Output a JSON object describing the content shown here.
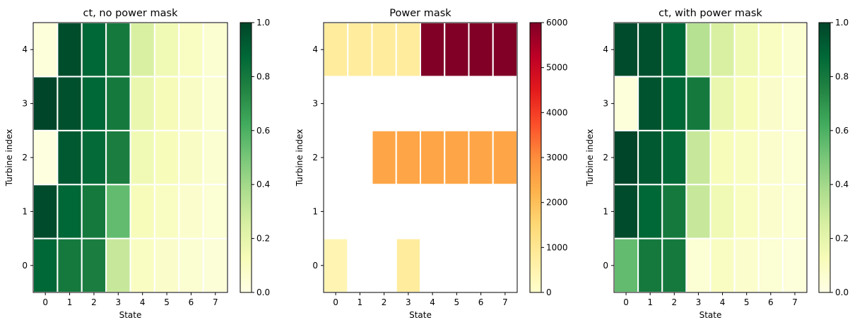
{
  "chart_data": [
    {
      "type": "heatmap",
      "title": "ct, no power mask",
      "xlabel": "State",
      "ylabel": "Turbine index",
      "x": [
        0,
        1,
        2,
        3,
        4,
        5,
        6,
        7
      ],
      "y": [
        0,
        1,
        2,
        3,
        4
      ],
      "colormap": "YlGn",
      "vmin": 0,
      "vmax": 1,
      "colorbar_ticks": [
        "0.0",
        "0.2",
        "0.4",
        "0.6",
        "0.8",
        "1.0"
      ],
      "values": [
        [
          0.88,
          0.8,
          0.78,
          0.3,
          0.1,
          0.08,
          0.06,
          0.04
        ],
        [
          0.98,
          0.88,
          0.8,
          0.55,
          0.12,
          0.1,
          0.07,
          0.05
        ],
        [
          0.02,
          0.93,
          0.86,
          0.78,
          0.15,
          0.12,
          0.09,
          0.06
        ],
        [
          1.0,
          0.96,
          0.88,
          0.8,
          0.18,
          0.13,
          0.09,
          0.06
        ],
        [
          0.03,
          0.97,
          0.88,
          0.8,
          0.25,
          0.15,
          0.1,
          0.06
        ]
      ]
    },
    {
      "type": "heatmap",
      "title": "Power mask",
      "xlabel": "State",
      "ylabel": "Turbine index",
      "x": [
        0,
        1,
        2,
        3,
        4,
        5,
        6,
        7
      ],
      "y": [
        0,
        1,
        2,
        3,
        4
      ],
      "colormap": "YlOrRd",
      "vmin": 0,
      "vmax": 6000,
      "colorbar_ticks": [
        "0",
        "1000",
        "2000",
        "3000",
        "4000",
        "5000",
        "6000"
      ],
      "values": [
        [
          450,
          null,
          null,
          800,
          null,
          null,
          null,
          null
        ],
        [
          null,
          null,
          null,
          null,
          null,
          null,
          null,
          null
        ],
        [
          null,
          null,
          2500,
          2500,
          2500,
          2500,
          2500,
          2500
        ],
        [
          null,
          null,
          null,
          null,
          null,
          null,
          null,
          null
        ],
        [
          800,
          800,
          800,
          800,
          6000,
          6000,
          6000,
          6000
        ]
      ]
    },
    {
      "type": "heatmap",
      "title": "ct, with power mask",
      "xlabel": "State",
      "ylabel": "Turbine index",
      "x": [
        0,
        1,
        2,
        3,
        4,
        5,
        6,
        7
      ],
      "y": [
        0,
        1,
        2,
        3,
        4
      ],
      "colormap": "YlGn",
      "vmin": 0,
      "vmax": 1,
      "colorbar_ticks": [
        "0.0",
        "0.2",
        "0.4",
        "0.6",
        "0.8",
        "1.0"
      ],
      "values": [
        [
          0.55,
          0.8,
          0.8,
          0.05,
          0.1,
          0.07,
          0.05,
          0.03
        ],
        [
          0.98,
          0.88,
          0.8,
          0.3,
          0.15,
          0.1,
          0.07,
          0.05
        ],
        [
          1.0,
          0.93,
          0.86,
          0.3,
          0.12,
          0.1,
          0.07,
          0.05
        ],
        [
          0.03,
          0.95,
          0.88,
          0.8,
          0.18,
          0.12,
          0.08,
          0.05
        ],
        [
          0.98,
          0.96,
          0.88,
          0.35,
          0.25,
          0.15,
          0.1,
          0.06
        ]
      ]
    }
  ]
}
